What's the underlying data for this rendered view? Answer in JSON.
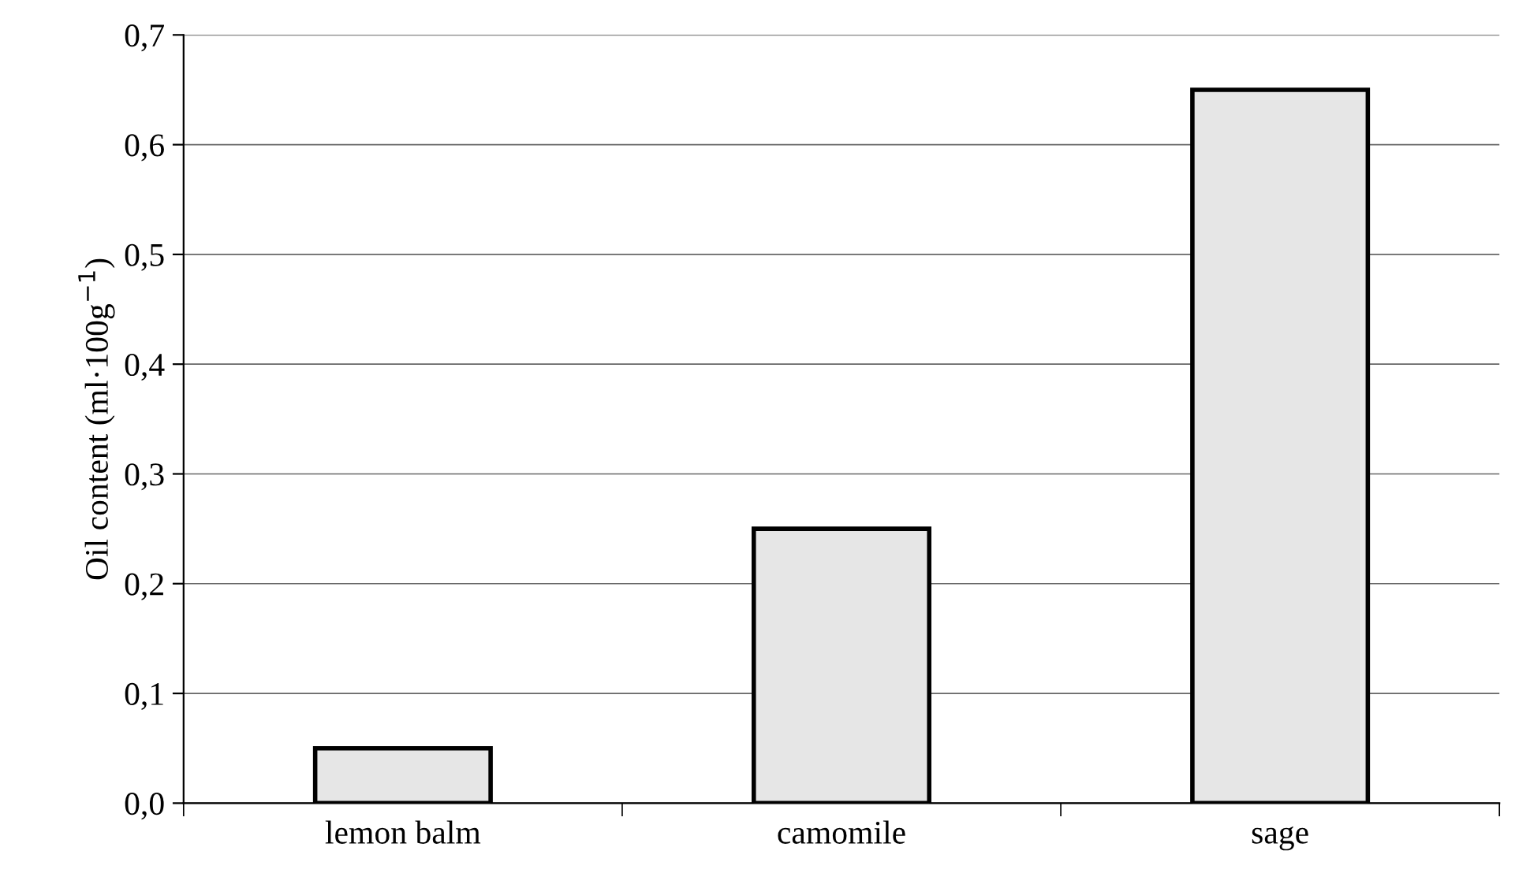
{
  "chart_data": {
    "type": "bar",
    "ylabel": "Oil content (ml·100g$^{−1}$)",
    "categories": [
      "lemon balm",
      "camomile",
      "sage"
    ],
    "values": [
      0.05,
      0.25,
      0.65
    ],
    "color": "#e6e6e6",
    "ylim": [
      0,
      0.7
    ],
    "yticks": [
      {
        "value": 0,
        "label": "0,0"
      },
      {
        "value": 0.1,
        "label": "0,1"
      },
      {
        "value": 0.2,
        "label": "0,2"
      },
      {
        "value": 0.3,
        "label": "0,3"
      },
      {
        "value": 0.4,
        "label": "0,4"
      },
      {
        "value": 0.5,
        "label": "0,5"
      },
      {
        "value": 0.6,
        "label": "0,6"
      },
      {
        "value": 0.7,
        "label": "0,7"
      }
    ],
    "grid": "y",
    "legend": false
  }
}
